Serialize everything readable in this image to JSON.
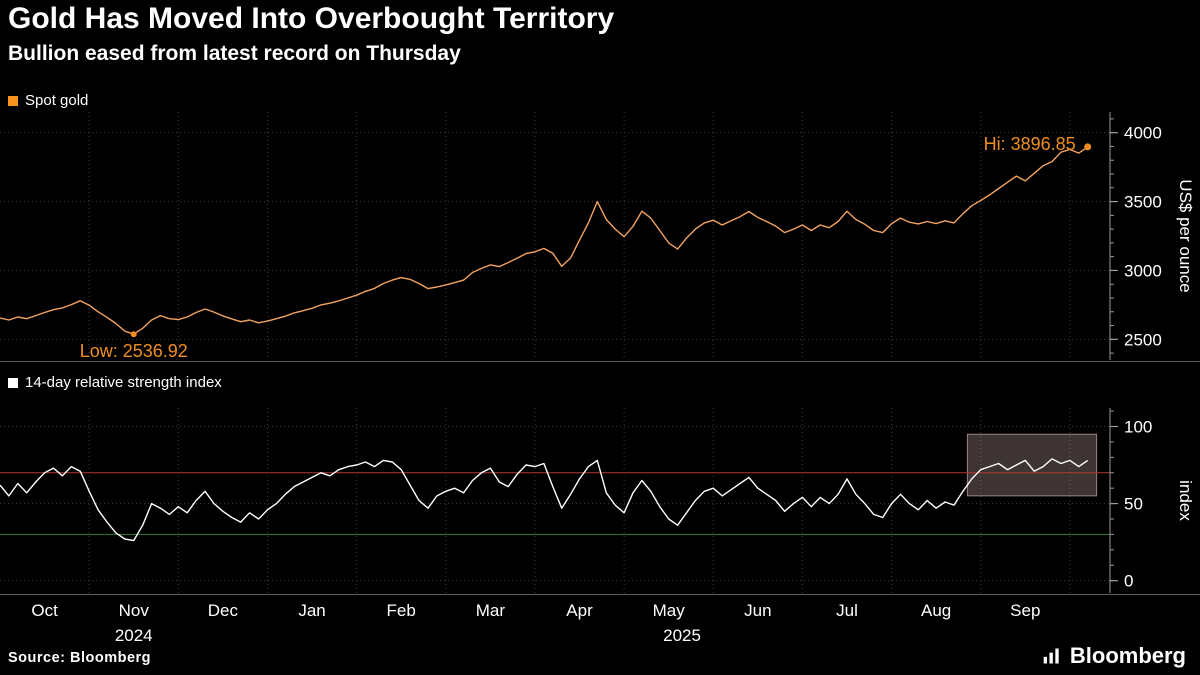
{
  "header": {
    "title": "Gold Has Moved Into Overbought Territory",
    "subtitle": "Bullion eased from latest record on Thursday"
  },
  "source": "Source: Bloomberg",
  "brand": {
    "name": "Bloomberg"
  },
  "colors": {
    "background": "#000000",
    "grid": "#3d3d3d",
    "axis": "#9b9b9b",
    "text": "#ffffff",
    "accent_orange": "#ef8e1f",
    "highlight_fill": "rgba(240,200,200,0.26)",
    "highlight_border": "rgba(255,215,215,0.55)"
  },
  "x_axis": {
    "domain": [
      0,
      12.45
    ],
    "months": [
      "Oct",
      "Nov",
      "Dec",
      "Jan",
      "Feb",
      "Mar",
      "Apr",
      "May",
      "Jun",
      "Jul",
      "Aug",
      "Sep"
    ],
    "years": [
      {
        "label": "2024",
        "x": 1.5
      },
      {
        "label": "2025",
        "x": 7.65
      }
    ]
  },
  "chart_data": [
    {
      "type": "line",
      "name": "spot-gold",
      "legend": {
        "label": "Spot gold",
        "swatch_color": "#f79420"
      },
      "color": "#f3a35f",
      "unit_label": "US$ per ounce",
      "ylim": [
        2350,
        4150
      ],
      "yticks": [
        2500,
        3000,
        3500,
        4000
      ],
      "x0": 0,
      "dx": 0.1,
      "values": [
        2655,
        2640,
        2662,
        2650,
        2672,
        2695,
        2715,
        2728,
        2752,
        2780,
        2748,
        2700,
        2660,
        2615,
        2560,
        2536.92,
        2580,
        2640,
        2672,
        2650,
        2643,
        2662,
        2695,
        2720,
        2698,
        2670,
        2648,
        2628,
        2640,
        2620,
        2632,
        2650,
        2668,
        2692,
        2708,
        2725,
        2750,
        2762,
        2780,
        2800,
        2820,
        2848,
        2870,
        2905,
        2930,
        2948,
        2935,
        2905,
        2868,
        2880,
        2895,
        2912,
        2930,
        2985,
        3015,
        3040,
        3028,
        3058,
        3088,
        3122,
        3135,
        3160,
        3125,
        3030,
        3090,
        3220,
        3345,
        3500,
        3370,
        3300,
        3245,
        3320,
        3430,
        3380,
        3290,
        3200,
        3155,
        3235,
        3300,
        3345,
        3365,
        3330,
        3360,
        3390,
        3428,
        3385,
        3355,
        3322,
        3275,
        3300,
        3330,
        3290,
        3330,
        3310,
        3355,
        3430,
        3370,
        3335,
        3290,
        3275,
        3340,
        3380,
        3350,
        3338,
        3355,
        3340,
        3360,
        3345,
        3412,
        3470,
        3508,
        3548,
        3595,
        3640,
        3685,
        3650,
        3705,
        3760,
        3790,
        3858,
        3878,
        3852,
        3896.85
      ],
      "annotations": {
        "high": {
          "label": "Hi: 3896.85",
          "value": 3896.85
        },
        "low": {
          "label": "Low: 2536.92",
          "value": 2536.92
        }
      }
    },
    {
      "type": "line",
      "name": "rsi",
      "legend": {
        "label": "14-day relative strength index",
        "swatch_color": "#ffffff"
      },
      "color": "#ffffff",
      "unit_label": "index",
      "ylim": [
        -8,
        112
      ],
      "yticks": [
        0,
        50,
        100
      ],
      "x0": 0,
      "dx": 0.1,
      "values": [
        62,
        55,
        63,
        57,
        64,
        70,
        73,
        68,
        74,
        71,
        58,
        46,
        38,
        31,
        27,
        26,
        36,
        50,
        47,
        43,
        48,
        44,
        52,
        58,
        50,
        45,
        41,
        38,
        44,
        40,
        46,
        50,
        56,
        61,
        64,
        67,
        70,
        68,
        72,
        74,
        75,
        77,
        74,
        78,
        77,
        72,
        62,
        52,
        47,
        55,
        58,
        60,
        57,
        65,
        70,
        73,
        64,
        61,
        69,
        75,
        74,
        76,
        61,
        47,
        56,
        66,
        74,
        78,
        57,
        49,
        44,
        57,
        65,
        58,
        48,
        40,
        36,
        44,
        52,
        58,
        60,
        55,
        59,
        63,
        67,
        60,
        56,
        52,
        45,
        50,
        54,
        48,
        54,
        50,
        56,
        66,
        56,
        50,
        43,
        41,
        50,
        56,
        50,
        46,
        52,
        47,
        51,
        49,
        58,
        66,
        72,
        74,
        76,
        72,
        75,
        78,
        71,
        74,
        79,
        76,
        78,
        74,
        78
      ],
      "reference_lines": [
        {
          "name": "overbought-line",
          "value": 70,
          "color": "#b03a2e"
        },
        {
          "name": "oversold-line",
          "value": 30,
          "color": "#2f7d33"
        }
      ],
      "highlight_box": {
        "x0": 10.85,
        "x1": 12.3,
        "y0": 55,
        "y1": 95
      }
    }
  ]
}
